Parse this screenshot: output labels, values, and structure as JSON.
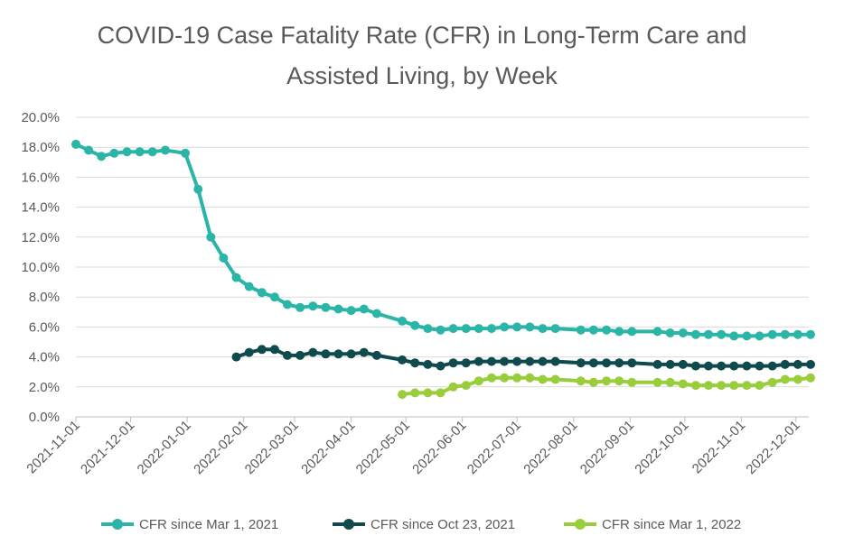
{
  "chart_data": {
    "type": "line",
    "title_lines": [
      "COVID-19 Case Fatality Rate (CFR) in Long-Term Care and",
      "Assisted Living, by Week"
    ],
    "xlabel": "",
    "ylabel": "",
    "x_ticks": [
      "2021-11-01",
      "2021-12-01",
      "2022-01-01",
      "2022-02-01",
      "2022-03-01",
      "2022-04-01",
      "2022-05-01",
      "2022-06-01",
      "2022-07-01",
      "2022-08-01",
      "2022-09-01",
      "2022-10-01",
      "2022-11-01",
      "2022-12-01"
    ],
    "xlim": [
      "2021-11-01",
      "2022-12-08"
    ],
    "y_ticks": [
      "0.0%",
      "2.0%",
      "4.0%",
      "6.0%",
      "8.0%",
      "10.0%",
      "12.0%",
      "14.0%",
      "16.0%",
      "18.0%",
      "20.0%"
    ],
    "ylim": [
      0,
      20
    ],
    "grid": "horizontal",
    "legend_position": "bottom",
    "series": [
      {
        "name": "CFR since Mar 1, 2021",
        "color": "#2bb5a7",
        "points": [
          [
            "2021-11-01",
            18.2
          ],
          [
            "2021-11-08",
            17.8
          ],
          [
            "2021-11-15",
            17.4
          ],
          [
            "2021-11-22",
            17.6
          ],
          [
            "2021-11-29",
            17.7
          ],
          [
            "2021-12-06",
            17.7
          ],
          [
            "2021-12-13",
            17.7
          ],
          [
            "2021-12-20",
            17.8
          ],
          [
            "2021-12-31",
            17.6
          ],
          [
            "2022-01-07",
            15.2
          ],
          [
            "2022-01-14",
            12.0
          ],
          [
            "2022-01-21",
            10.6
          ],
          [
            "2022-01-28",
            9.3
          ],
          [
            "2022-02-04",
            8.7
          ],
          [
            "2022-02-11",
            8.3
          ],
          [
            "2022-02-18",
            8.0
          ],
          [
            "2022-02-25",
            7.5
          ],
          [
            "2022-03-04",
            7.3
          ],
          [
            "2022-03-11",
            7.4
          ],
          [
            "2022-03-18",
            7.3
          ],
          [
            "2022-03-25",
            7.2
          ],
          [
            "2022-04-01",
            7.1
          ],
          [
            "2022-04-08",
            7.2
          ],
          [
            "2022-04-15",
            6.9
          ],
          [
            "2022-04-29",
            6.4
          ],
          [
            "2022-05-06",
            6.1
          ],
          [
            "2022-05-13",
            5.9
          ],
          [
            "2022-05-20",
            5.8
          ],
          [
            "2022-05-27",
            5.9
          ],
          [
            "2022-06-03",
            5.9
          ],
          [
            "2022-06-10",
            5.9
          ],
          [
            "2022-06-17",
            5.9
          ],
          [
            "2022-06-24",
            6.0
          ],
          [
            "2022-07-01",
            6.0
          ],
          [
            "2022-07-08",
            6.0
          ],
          [
            "2022-07-15",
            5.9
          ],
          [
            "2022-07-22",
            5.9
          ],
          [
            "2022-08-05",
            5.8
          ],
          [
            "2022-08-12",
            5.8
          ],
          [
            "2022-08-19",
            5.8
          ],
          [
            "2022-08-26",
            5.7
          ],
          [
            "2022-09-02",
            5.7
          ],
          [
            "2022-09-16",
            5.7
          ],
          [
            "2022-09-23",
            5.6
          ],
          [
            "2022-09-30",
            5.6
          ],
          [
            "2022-10-07",
            5.5
          ],
          [
            "2022-10-14",
            5.5
          ],
          [
            "2022-10-21",
            5.5
          ],
          [
            "2022-10-28",
            5.4
          ],
          [
            "2022-11-04",
            5.4
          ],
          [
            "2022-11-11",
            5.4
          ],
          [
            "2022-11-18",
            5.5
          ],
          [
            "2022-11-25",
            5.5
          ],
          [
            "2022-12-02",
            5.5
          ],
          [
            "2022-12-09",
            5.5
          ]
        ]
      },
      {
        "name": "CFR since Oct 23, 2021",
        "color": "#0f4a4d",
        "points": [
          [
            "2022-01-28",
            4.0
          ],
          [
            "2022-02-04",
            4.3
          ],
          [
            "2022-02-11",
            4.5
          ],
          [
            "2022-02-18",
            4.5
          ],
          [
            "2022-02-25",
            4.1
          ],
          [
            "2022-03-04",
            4.1
          ],
          [
            "2022-03-11",
            4.3
          ],
          [
            "2022-03-18",
            4.2
          ],
          [
            "2022-03-25",
            4.2
          ],
          [
            "2022-04-01",
            4.2
          ],
          [
            "2022-04-08",
            4.3
          ],
          [
            "2022-04-15",
            4.1
          ],
          [
            "2022-04-29",
            3.8
          ],
          [
            "2022-05-06",
            3.6
          ],
          [
            "2022-05-13",
            3.5
          ],
          [
            "2022-05-20",
            3.4
          ],
          [
            "2022-05-27",
            3.6
          ],
          [
            "2022-06-03",
            3.6
          ],
          [
            "2022-06-10",
            3.7
          ],
          [
            "2022-06-17",
            3.7
          ],
          [
            "2022-06-24",
            3.7
          ],
          [
            "2022-07-01",
            3.7
          ],
          [
            "2022-07-08",
            3.7
          ],
          [
            "2022-07-15",
            3.7
          ],
          [
            "2022-07-22",
            3.7
          ],
          [
            "2022-08-05",
            3.6
          ],
          [
            "2022-08-12",
            3.6
          ],
          [
            "2022-08-19",
            3.6
          ],
          [
            "2022-08-26",
            3.6
          ],
          [
            "2022-09-02",
            3.6
          ],
          [
            "2022-09-16",
            3.5
          ],
          [
            "2022-09-23",
            3.5
          ],
          [
            "2022-09-30",
            3.5
          ],
          [
            "2022-10-07",
            3.4
          ],
          [
            "2022-10-14",
            3.4
          ],
          [
            "2022-10-21",
            3.4
          ],
          [
            "2022-10-28",
            3.4
          ],
          [
            "2022-11-04",
            3.4
          ],
          [
            "2022-11-11",
            3.4
          ],
          [
            "2022-11-18",
            3.4
          ],
          [
            "2022-11-25",
            3.5
          ],
          [
            "2022-12-02",
            3.5
          ],
          [
            "2022-12-09",
            3.5
          ]
        ]
      },
      {
        "name": "CFR since Mar 1, 2022",
        "color": "#9acd3c",
        "points": [
          [
            "2022-04-29",
            1.5
          ],
          [
            "2022-05-06",
            1.6
          ],
          [
            "2022-05-13",
            1.6
          ],
          [
            "2022-05-20",
            1.6
          ],
          [
            "2022-05-27",
            2.0
          ],
          [
            "2022-06-03",
            2.1
          ],
          [
            "2022-06-10",
            2.4
          ],
          [
            "2022-06-17",
            2.6
          ],
          [
            "2022-06-24",
            2.6
          ],
          [
            "2022-07-01",
            2.6
          ],
          [
            "2022-07-08",
            2.6
          ],
          [
            "2022-07-15",
            2.5
          ],
          [
            "2022-07-22",
            2.5
          ],
          [
            "2022-08-05",
            2.4
          ],
          [
            "2022-08-12",
            2.3
          ],
          [
            "2022-08-19",
            2.4
          ],
          [
            "2022-08-26",
            2.4
          ],
          [
            "2022-09-02",
            2.3
          ],
          [
            "2022-09-16",
            2.3
          ],
          [
            "2022-09-23",
            2.3
          ],
          [
            "2022-09-30",
            2.2
          ],
          [
            "2022-10-07",
            2.1
          ],
          [
            "2022-10-14",
            2.1
          ],
          [
            "2022-10-21",
            2.1
          ],
          [
            "2022-10-28",
            2.1
          ],
          [
            "2022-11-04",
            2.1
          ],
          [
            "2022-11-11",
            2.1
          ],
          [
            "2022-11-18",
            2.3
          ],
          [
            "2022-11-25",
            2.5
          ],
          [
            "2022-12-02",
            2.5
          ],
          [
            "2022-12-09",
            2.6
          ]
        ]
      }
    ]
  }
}
